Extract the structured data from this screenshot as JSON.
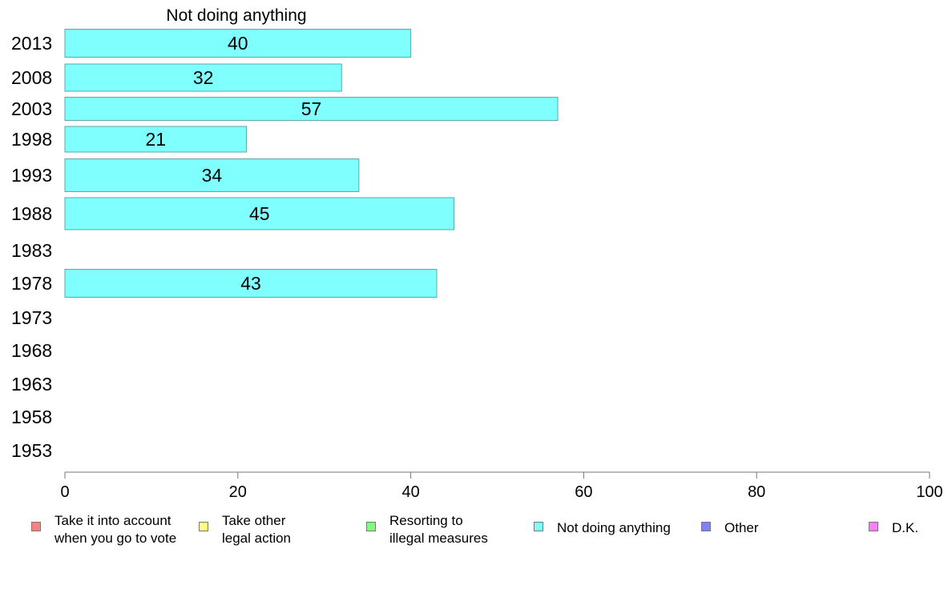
{
  "chart_data": {
    "type": "bar",
    "orientation": "horizontal",
    "title": "Not doing anything",
    "categories": [
      "2013",
      "2008",
      "2003",
      "1998",
      "1993",
      "1988",
      "1983",
      "1978",
      "1973",
      "1968",
      "1963",
      "1958",
      "1953"
    ],
    "series": [
      {
        "name": "Not doing anything",
        "color": "#80ffff",
        "values": [
          40,
          32,
          57,
          21,
          34,
          45,
          null,
          43,
          null,
          null,
          null,
          null,
          null
        ]
      }
    ],
    "xlim": [
      0,
      100
    ],
    "xticks": [
      "0",
      "20",
      "40",
      "60",
      "80",
      "100"
    ],
    "grid": false,
    "legend_position": "bottom",
    "legend": [
      {
        "label": "Take it into account\nwhen you go to vote",
        "color": "#ff8080"
      },
      {
        "label": "Take other\nlegal action",
        "color": "#ffff80"
      },
      {
        "label": "Resorting to\nillegal measures",
        "color": "#80ff80"
      },
      {
        "label": "Not doing anything",
        "color": "#80ffff"
      },
      {
        "label": "Other",
        "color": "#8080ff"
      },
      {
        "label": "D.K.",
        "color": "#ff80ff"
      }
    ]
  }
}
